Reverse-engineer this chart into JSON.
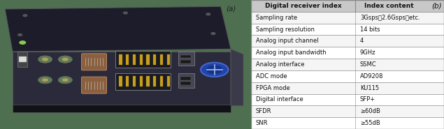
{
  "label_a": "(a)",
  "label_b": "(b)",
  "col1_header": "Digital receiver index",
  "col2_header": "Index content",
  "rows": [
    [
      "Sampling rate",
      "3Gsps，2.6Gsps，etc."
    ],
    [
      "Sampling resolution",
      "14 bits"
    ],
    [
      "Analog input channel",
      "4"
    ],
    [
      "Analog input bandwidth",
      "9GHz"
    ],
    [
      "Analog interface",
      "SSMC"
    ],
    [
      "ADC mode",
      "AD9208"
    ],
    [
      "FPGA mode",
      "KU115"
    ],
    [
      "Digital interface",
      "SFP+"
    ],
    [
      "SFDR",
      "≥60dB"
    ],
    [
      "SNR",
      "≥55dB"
    ]
  ],
  "header_bg": "#c8c8c8",
  "row_bg_light": "#f5f5f5",
  "row_bg_white": "#ffffff",
  "border_color": "#888888",
  "text_color": "#111111",
  "header_fontsize": 6.5,
  "cell_fontsize": 6.0,
  "label_fontsize": 7.5,
  "photo_bg": "#4e7050",
  "fig_bg": "#ffffff",
  "device_dark": "#1c1c2a",
  "device_mid": "#2a2a3a",
  "device_light": "#3a3a4a",
  "connector_gold": "#b8a030",
  "connector_green": "#607858"
}
